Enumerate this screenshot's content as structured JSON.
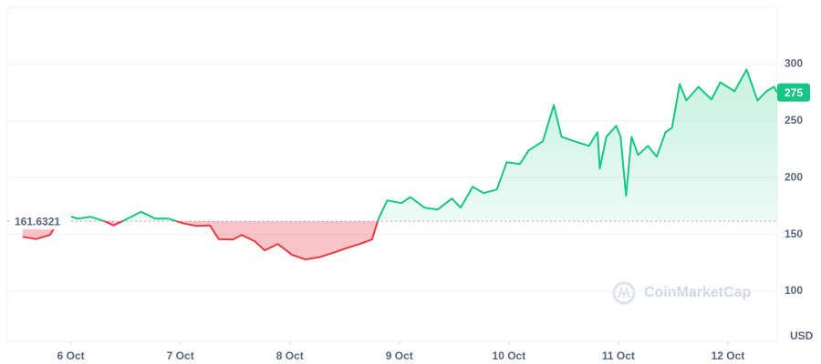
{
  "chart_data": {
    "type": "line",
    "x": [
      5.56,
      5.68,
      5.81,
      5.93,
      6.06,
      6.18,
      6.31,
      6.39,
      6.52,
      6.64,
      6.77,
      6.89,
      7.02,
      7.14,
      7.27,
      7.35,
      7.48,
      7.56,
      7.68,
      7.77,
      7.89,
      8.02,
      8.14,
      8.27,
      8.39,
      8.52,
      8.64,
      8.75,
      8.81,
      8.89,
      9.02,
      9.1,
      9.23,
      9.35,
      9.48,
      9.56,
      9.67,
      9.77,
      9.89,
      9.98,
      10.1,
      10.18,
      10.31,
      10.41,
      10.48,
      10.6,
      10.73,
      10.81,
      10.83,
      10.89,
      10.98,
      11.02,
      11.07,
      11.12,
      11.18,
      11.27,
      11.35,
      11.43,
      11.49,
      11.56,
      11.62,
      11.73,
      11.85,
      11.93,
      12.06,
      12.17,
      12.27,
      12.35,
      12.42,
      12.45
    ],
    "series": [
      {
        "values": [
          148,
          146,
          149.6,
          168,
          164,
          165.6,
          161.6,
          158,
          164,
          170,
          164,
          164,
          160,
          157.6,
          158,
          146,
          145.6,
          149.6,
          144,
          136,
          141.6,
          132,
          128,
          130,
          133.6,
          138,
          141.6,
          145.6,
          164,
          180,
          177.6,
          183,
          173.6,
          172,
          181.6,
          173.6,
          192,
          186.4,
          189.6,
          213.6,
          212,
          224,
          232,
          264,
          236,
          232,
          228,
          240,
          208,
          236,
          245.6,
          236,
          184,
          236,
          220,
          228,
          218.4,
          240,
          244,
          282.4,
          268,
          280,
          268.8,
          284,
          276,
          295.2,
          268,
          276,
          280,
          275
        ],
        "up_color": "#16c784",
        "down_color": "#ea3943"
      }
    ],
    "baseline": 161.6321,
    "current_price": 275,
    "xlim": [
      5.42,
      12.45
    ],
    "xticks": [
      {
        "value": 6,
        "label": "6 Oct"
      },
      {
        "value": 7,
        "label": "7 Oct"
      },
      {
        "value": 8,
        "label": "8 Oct"
      },
      {
        "value": 9,
        "label": "9 Oct"
      },
      {
        "value": 10,
        "label": "10 Oct"
      },
      {
        "value": 11,
        "label": "11 Oct"
      },
      {
        "value": 12,
        "label": "12 Oct"
      }
    ],
    "ylim": [
      56,
      350
    ],
    "yticks": [
      100,
      150,
      200,
      250,
      300
    ],
    "y_unit": "USD",
    "watermark": "CoinMarketCap",
    "grid": true
  }
}
